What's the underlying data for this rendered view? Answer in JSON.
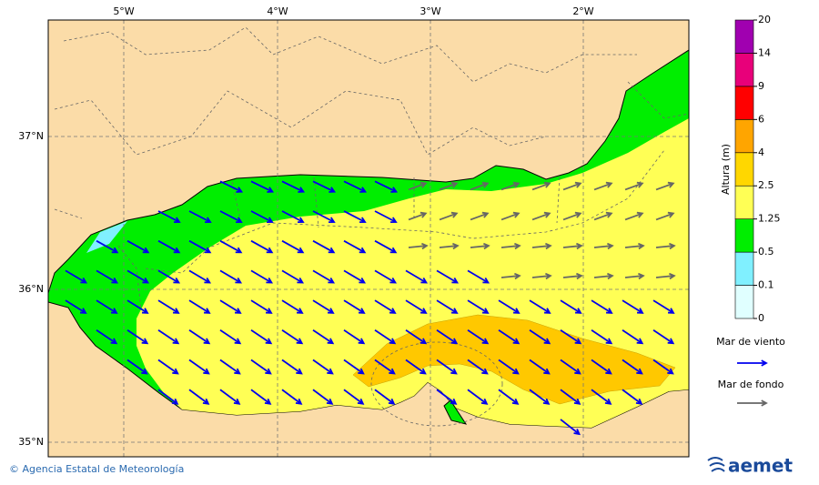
{
  "map": {
    "lon_labels": [
      "5°W",
      "4°W",
      "3°W",
      "2°W"
    ],
    "lat_labels": [
      "37°N",
      "36°N",
      "35°N"
    ],
    "legend": {
      "title": "Altura (m)",
      "levels": [
        0,
        0.1,
        0.5,
        1.25,
        2.5,
        4,
        6,
        9,
        14,
        20
      ],
      "colors": [
        "#e0ffff",
        "#80f0ff",
        "#00ee00",
        "#ffff55",
        "#ffd700",
        "#ffa500",
        "#ff0000",
        "#e8007a",
        "#a000b0"
      ]
    },
    "arrows": [
      {
        "label": "Mar de viento",
        "color": "#0000ee"
      },
      {
        "label": "Mar de fondo",
        "color": "#666666"
      }
    ]
  },
  "footer": {
    "credit": "© Agencia Estatal de Meteorología",
    "logo": "aemet"
  }
}
